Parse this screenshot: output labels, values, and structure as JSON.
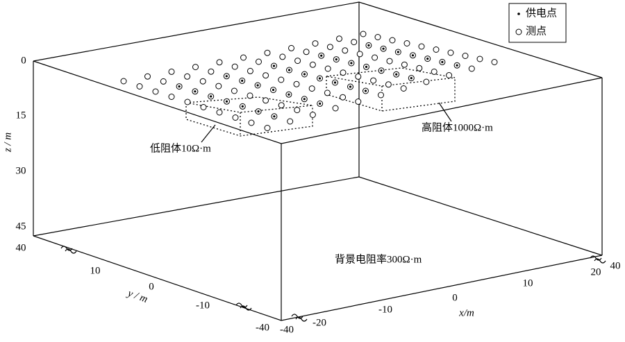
{
  "legend": {
    "items": [
      {
        "label": "供电点"
      },
      {
        "label": "测点"
      }
    ]
  },
  "annotations": {
    "low": "低阻体10Ω·m",
    "high": "高阻体1000Ω·m",
    "background": "背景电阻率300Ω·m"
  },
  "axes": {
    "z": {
      "label": "z / m",
      "ticks": [
        "0",
        "15",
        "30",
        "45"
      ]
    },
    "y": {
      "label": "y / m",
      "ticks": [
        "40",
        "10",
        "0",
        "-10",
        "-40"
      ]
    },
    "x": {
      "label": "x/m",
      "ticks": [
        "-40",
        "-20",
        "-10",
        "0",
        "10",
        "20",
        "40"
      ]
    }
  }
}
